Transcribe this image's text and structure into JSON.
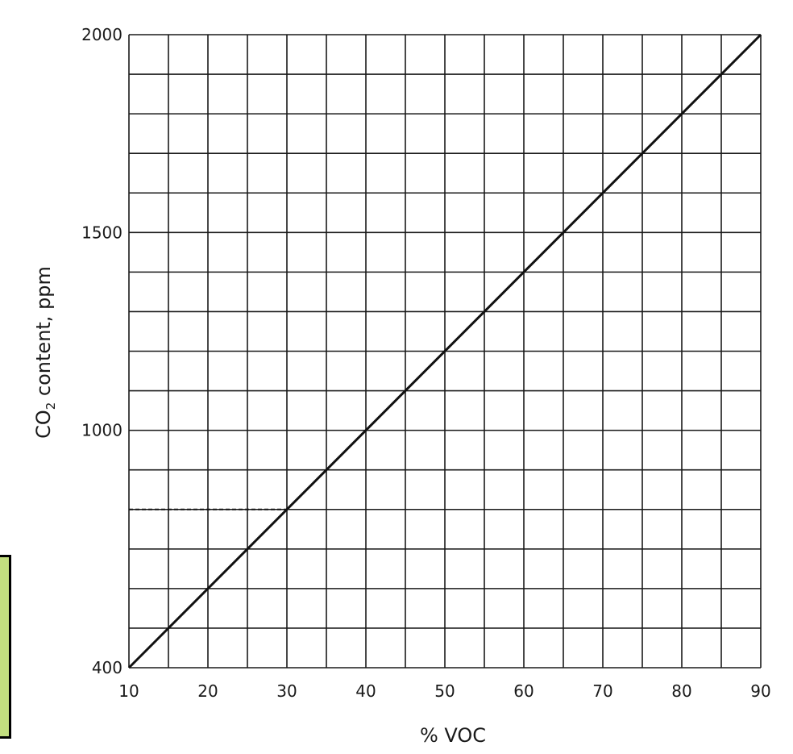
{
  "chart_data": {
    "type": "line",
    "xlabel": "% VOC",
    "ylabel": "CO2 content, ppm",
    "ylabel_parts": {
      "pre": "CO",
      "sub": "2",
      "post": " content, ppm"
    },
    "xlim": [
      10,
      90
    ],
    "ylim": [
      400,
      2000
    ],
    "x_ticks": [
      10,
      20,
      30,
      40,
      50,
      60,
      70,
      80,
      90
    ],
    "y_ticks": [
      400,
      1000,
      1500,
      2000
    ],
    "grid": true,
    "x_grid_step": 5,
    "y_grid_step": 100,
    "series": [
      {
        "x": [
          10,
          90
        ],
        "y": [
          400,
          2000
        ],
        "style": "solid"
      }
    ],
    "reference_line": {
      "x": [
        10,
        30
      ],
      "y": [
        800,
        800
      ],
      "style": "dashed"
    }
  },
  "colors": {
    "line": "#111111",
    "grid": "#1a1a1a",
    "note_fill": "#c2de7f"
  }
}
